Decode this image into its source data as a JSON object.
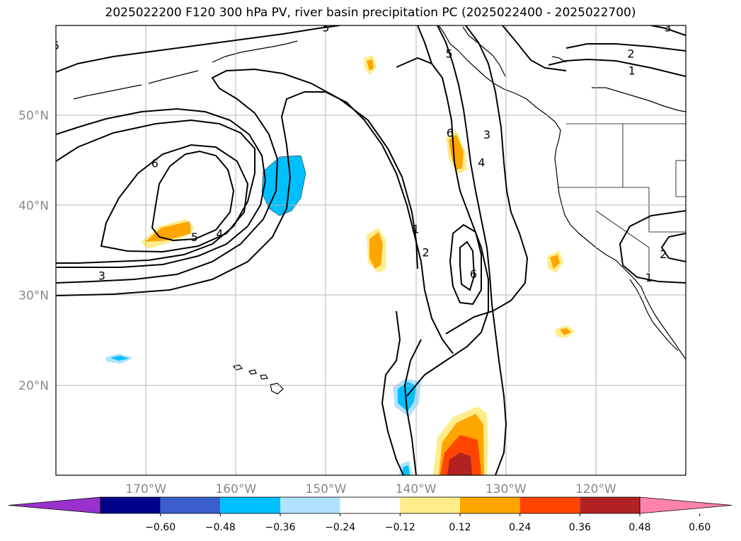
{
  "title": "2025022200 F120 300 hPa PV, river basin precipitation PC (2025022400 - 2025022700)",
  "map": {
    "projection": "PlateCarree",
    "lon_range": [
      -180,
      -110
    ],
    "lat_range": [
      10,
      60
    ],
    "gridlines": true,
    "lon_ticks": [
      {
        "lon": -170,
        "label": "170°W"
      },
      {
        "lon": -160,
        "label": "160°W"
      },
      {
        "lon": -150,
        "label": "150°W"
      },
      {
        "lon": -140,
        "label": "140°W"
      },
      {
        "lon": -130,
        "label": "130°W"
      },
      {
        "lon": -120,
        "label": "120°W"
      }
    ],
    "lat_ticks": [
      {
        "lat": 50,
        "label": "50°N"
      },
      {
        "lat": 40,
        "label": "40°N"
      },
      {
        "lat": 30,
        "label": "30°N"
      },
      {
        "lat": 20,
        "label": "20°N"
      }
    ],
    "contour_labels": [
      {
        "text": "6",
        "lon": -169.0,
        "lat": 44.7
      },
      {
        "text": "5",
        "lon": -164.6,
        "lat": 36.5
      },
      {
        "text": "4",
        "lon": -161.8,
        "lat": 36.9
      },
      {
        "text": "3",
        "lon": -174.9,
        "lat": 32.2
      },
      {
        "text": "6",
        "lon": -136.2,
        "lat": 48.1
      },
      {
        "text": "3",
        "lon": -132.1,
        "lat": 47.9
      },
      {
        "text": "4",
        "lon": -132.7,
        "lat": 44.8
      },
      {
        "text": "1",
        "lon": -140.0,
        "lat": 37.4
      },
      {
        "text": "2",
        "lon": -138.9,
        "lat": 34.8
      },
      {
        "text": "6",
        "lon": -133.6,
        "lat": 32.4
      },
      {
        "text": "5",
        "lon": -136.3,
        "lat": 56.9
      },
      {
        "text": "5",
        "lon": -150.0,
        "lat": 59.8
      },
      {
        "text": "2",
        "lon": -116.1,
        "lat": 56.9
      },
      {
        "text": "1",
        "lon": -116.0,
        "lat": 55.0
      },
      {
        "text": "3",
        "lon": -112.0,
        "lat": 59.8
      },
      {
        "text": "5",
        "lon": -180.0,
        "lat": 57.8
      },
      {
        "text": "2",
        "lon": -112.5,
        "lat": 34.6
      },
      {
        "text": "1",
        "lon": -114.1,
        "lat": 32.0
      }
    ]
  },
  "colorbar": {
    "ticks": [
      "−0.60",
      "−0.48",
      "−0.36",
      "−0.24",
      "−0.12",
      "0.12",
      "0.24",
      "0.36",
      "0.48",
      "0.60"
    ],
    "colors": [
      "#9932cc",
      "#00008b",
      "#3a5fcd",
      "#00bfff",
      "#b0e2ff",
      "#ffffff",
      "#ffec8b",
      "#ffa500",
      "#ff4500",
      "#b22222",
      "#ff82ab"
    ]
  },
  "colors": {
    "pos1": "#ffec8b",
    "pos2": "#ffa500",
    "pos3": "#ff4500",
    "pos4": "#b22222",
    "neg1": "#b0e2ff",
    "neg2": "#00bfff"
  }
}
